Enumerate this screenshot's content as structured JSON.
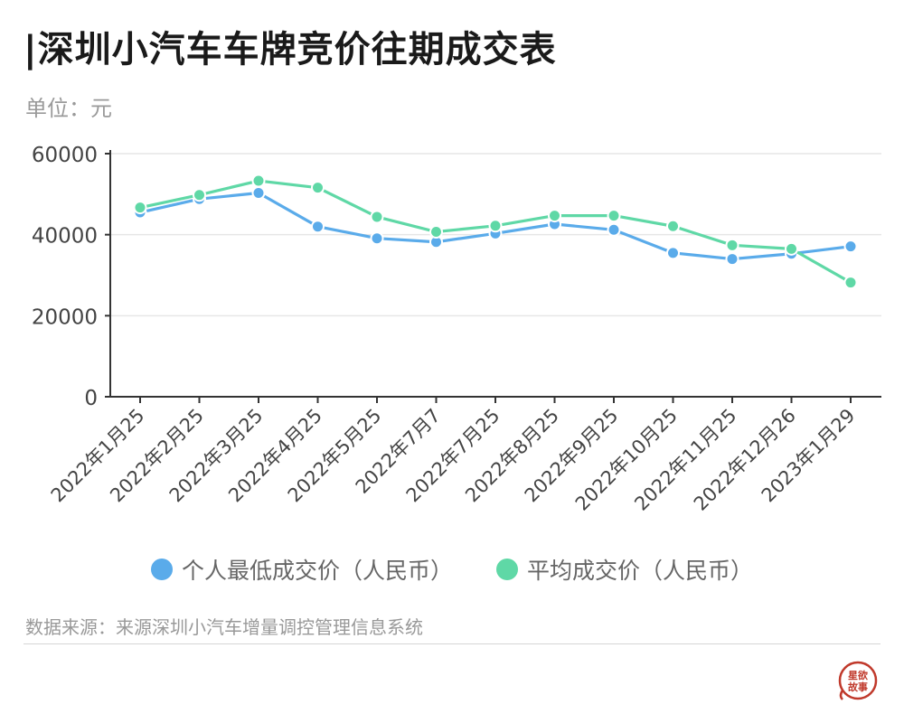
{
  "title": "|深圳小汽车车牌竞价往期成交表",
  "unit": "单位：元",
  "source": "数据来源：来源深圳小汽车增量调控管理信息系统",
  "logo": {
    "text_top": "星欲",
    "text_bottom": "故事",
    "color": "#c0392b"
  },
  "colors": {
    "series1": "#5aabea",
    "series2": "#5fd8a6",
    "axis": "#333333",
    "grid": "#e6e6e6"
  },
  "chart_data": {
    "type": "line",
    "title": "|深圳小汽车车牌竞价往期成交表",
    "ylabel": "单位：元",
    "ylim": [
      0,
      60000
    ],
    "yticks": [
      0,
      20000,
      40000,
      60000
    ],
    "grid": true,
    "legend_position": "bottom",
    "categories": [
      "2022年1月25",
      "2022年2月25",
      "2022年3月25",
      "2022年4月25",
      "2022年5月25",
      "2022年7月7",
      "2022年7月25",
      "2022年8月25",
      "2022年9月25",
      "2022年10月25",
      "2022年11月25",
      "2022年12月26",
      "2023年1月29"
    ],
    "series": [
      {
        "name": "个人最低成交价（人民币）",
        "color": "#5aabea",
        "values": [
          45500,
          48800,
          50300,
          42000,
          39100,
          38200,
          40300,
          42600,
          41200,
          35500,
          34000,
          35300,
          37100
        ]
      },
      {
        "name": "平均成交价（人民币）",
        "color": "#5fd8a6",
        "values": [
          46700,
          49800,
          53300,
          51600,
          44400,
          40700,
          42200,
          44700,
          44700,
          42100,
          37400,
          36500,
          28200
        ]
      }
    ]
  }
}
